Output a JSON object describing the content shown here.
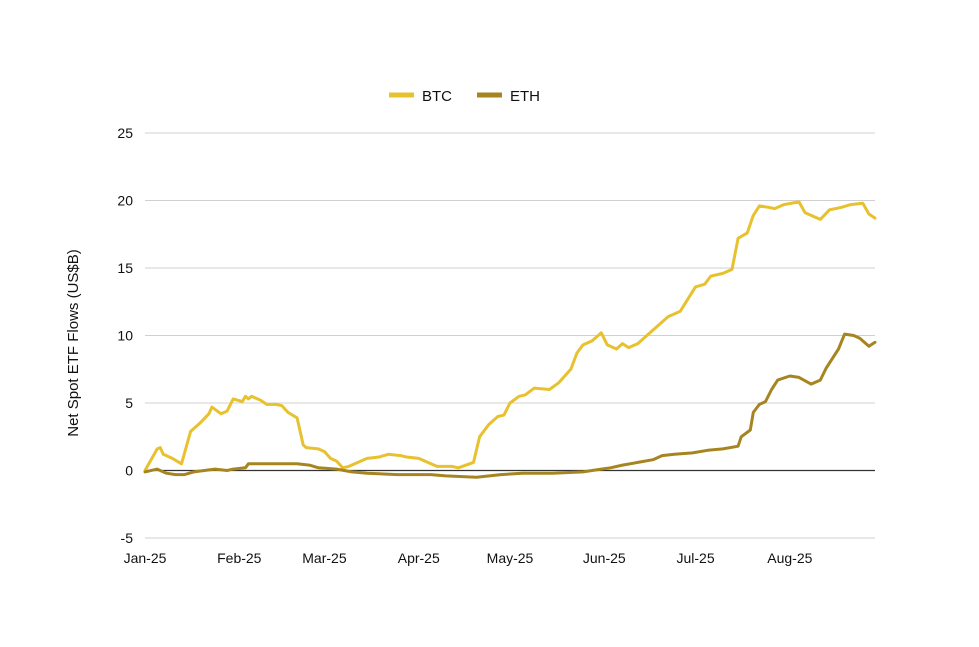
{
  "chart_data": {
    "type": "line",
    "title": "",
    "xlabel": "",
    "ylabel": "Net Spot ETF Flows (US$B)",
    "ylim": [
      -5,
      25
    ],
    "yticks": [
      -5,
      0,
      5,
      10,
      15,
      20,
      25
    ],
    "xlim": [
      "2025-01-01",
      "2025-08-29"
    ],
    "xticks": [
      {
        "date": "2025-01-01",
        "label": "Jan-25"
      },
      {
        "date": "2025-02-01",
        "label": "Feb-25"
      },
      {
        "date": "2025-03-01",
        "label": "Mar-25"
      },
      {
        "date": "2025-04-01",
        "label": "Apr-25"
      },
      {
        "date": "2025-05-01",
        "label": "May-25"
      },
      {
        "date": "2025-06-01",
        "label": "Jun-25"
      },
      {
        "date": "2025-07-01",
        "label": "Jul-25"
      },
      {
        "date": "2025-08-01",
        "label": "Aug-25"
      }
    ],
    "grid": "horizontal",
    "legend_position": "top-center",
    "series": [
      {
        "name": "BTC",
        "color": "#E8C12F",
        "points": [
          [
            "2025-01-01",
            0.0
          ],
          [
            "2025-01-03",
            0.8
          ],
          [
            "2025-01-05",
            1.6
          ],
          [
            "2025-01-06",
            1.7
          ],
          [
            "2025-01-07",
            1.2
          ],
          [
            "2025-01-10",
            0.9
          ],
          [
            "2025-01-13",
            0.5
          ],
          [
            "2025-01-16",
            2.9
          ],
          [
            "2025-01-19",
            3.5
          ],
          [
            "2025-01-22",
            4.2
          ],
          [
            "2025-01-23",
            4.7
          ],
          [
            "2025-01-26",
            4.2
          ],
          [
            "2025-01-28",
            4.4
          ],
          [
            "2025-01-30",
            5.3
          ],
          [
            "2025-02-02",
            5.1
          ],
          [
            "2025-02-03",
            5.5
          ],
          [
            "2025-02-04",
            5.3
          ],
          [
            "2025-02-05",
            5.5
          ],
          [
            "2025-02-08",
            5.2
          ],
          [
            "2025-02-10",
            4.9
          ],
          [
            "2025-02-13",
            4.9
          ],
          [
            "2025-02-15",
            4.8
          ],
          [
            "2025-02-17",
            4.3
          ],
          [
            "2025-02-20",
            3.9
          ],
          [
            "2025-02-22",
            1.9
          ],
          [
            "2025-02-23",
            1.7
          ],
          [
            "2025-02-27",
            1.6
          ],
          [
            "2025-03-01",
            1.4
          ],
          [
            "2025-03-03",
            0.9
          ],
          [
            "2025-03-05",
            0.7
          ],
          [
            "2025-03-07",
            0.2
          ],
          [
            "2025-03-09",
            0.3
          ],
          [
            "2025-03-12",
            0.6
          ],
          [
            "2025-03-15",
            0.9
          ],
          [
            "2025-03-19",
            1.0
          ],
          [
            "2025-03-22",
            1.2
          ],
          [
            "2025-03-26",
            1.1
          ],
          [
            "2025-03-28",
            1.0
          ],
          [
            "2025-04-01",
            0.9
          ],
          [
            "2025-04-05",
            0.5
          ],
          [
            "2025-04-07",
            0.3
          ],
          [
            "2025-04-12",
            0.3
          ],
          [
            "2025-04-14",
            0.2
          ],
          [
            "2025-04-19",
            0.6
          ],
          [
            "2025-04-21",
            2.5
          ],
          [
            "2025-04-24",
            3.4
          ],
          [
            "2025-04-27",
            4.0
          ],
          [
            "2025-04-29",
            4.1
          ],
          [
            "2025-05-01",
            5.0
          ],
          [
            "2025-05-04",
            5.5
          ],
          [
            "2025-05-06",
            5.6
          ],
          [
            "2025-05-09",
            6.1
          ],
          [
            "2025-05-14",
            6.0
          ],
          [
            "2025-05-17",
            6.5
          ],
          [
            "2025-05-21",
            7.5
          ],
          [
            "2025-05-23",
            8.7
          ],
          [
            "2025-05-25",
            9.3
          ],
          [
            "2025-05-28",
            9.6
          ],
          [
            "2025-05-31",
            10.2
          ],
          [
            "2025-06-02",
            9.3
          ],
          [
            "2025-06-05",
            9.0
          ],
          [
            "2025-06-07",
            9.4
          ],
          [
            "2025-06-09",
            9.1
          ],
          [
            "2025-06-12",
            9.4
          ],
          [
            "2025-06-15",
            10.0
          ],
          [
            "2025-06-18",
            10.6
          ],
          [
            "2025-06-22",
            11.4
          ],
          [
            "2025-06-26",
            11.8
          ],
          [
            "2025-06-29",
            12.9
          ],
          [
            "2025-07-01",
            13.6
          ],
          [
            "2025-07-04",
            13.8
          ],
          [
            "2025-07-06",
            14.4
          ],
          [
            "2025-07-10",
            14.6
          ],
          [
            "2025-07-13",
            14.9
          ],
          [
            "2025-07-15",
            17.2
          ],
          [
            "2025-07-18",
            17.6
          ],
          [
            "2025-07-20",
            18.9
          ],
          [
            "2025-07-22",
            19.6
          ],
          [
            "2025-07-25",
            19.5
          ],
          [
            "2025-07-27",
            19.4
          ],
          [
            "2025-07-30",
            19.7
          ],
          [
            "2025-08-04",
            19.9
          ],
          [
            "2025-08-06",
            19.1
          ],
          [
            "2025-08-09",
            18.8
          ],
          [
            "2025-08-11",
            18.6
          ],
          [
            "2025-08-14",
            19.3
          ],
          [
            "2025-08-18",
            19.5
          ],
          [
            "2025-08-21",
            19.7
          ],
          [
            "2025-08-25",
            19.8
          ],
          [
            "2025-08-27",
            19.0
          ],
          [
            "2025-08-29",
            18.7
          ]
        ]
      },
      {
        "name": "ETH",
        "color": "#A68521",
        "points": [
          [
            "2025-01-01",
            -0.1
          ],
          [
            "2025-01-05",
            0.1
          ],
          [
            "2025-01-08",
            -0.2
          ],
          [
            "2025-01-11",
            -0.3
          ],
          [
            "2025-01-14",
            -0.3
          ],
          [
            "2025-01-17",
            -0.1
          ],
          [
            "2025-01-24",
            0.1
          ],
          [
            "2025-01-28",
            0.0
          ],
          [
            "2025-01-30",
            0.1
          ],
          [
            "2025-02-03",
            0.2
          ],
          [
            "2025-02-04",
            0.5
          ],
          [
            "2025-02-10",
            0.5
          ],
          [
            "2025-02-20",
            0.5
          ],
          [
            "2025-02-24",
            0.4
          ],
          [
            "2025-02-27",
            0.2
          ],
          [
            "2025-03-05",
            0.1
          ],
          [
            "2025-03-10",
            -0.1
          ],
          [
            "2025-03-15",
            -0.2
          ],
          [
            "2025-03-25",
            -0.3
          ],
          [
            "2025-04-05",
            -0.3
          ],
          [
            "2025-04-10",
            -0.4
          ],
          [
            "2025-04-20",
            -0.5
          ],
          [
            "2025-04-28",
            -0.3
          ],
          [
            "2025-05-05",
            -0.2
          ],
          [
            "2025-05-15",
            -0.2
          ],
          [
            "2025-05-25",
            -0.1
          ],
          [
            "2025-05-31",
            0.1
          ],
          [
            "2025-06-03",
            0.2
          ],
          [
            "2025-06-07",
            0.4
          ],
          [
            "2025-06-12",
            0.6
          ],
          [
            "2025-06-17",
            0.8
          ],
          [
            "2025-06-20",
            1.1
          ],
          [
            "2025-06-24",
            1.2
          ],
          [
            "2025-06-30",
            1.3
          ],
          [
            "2025-07-05",
            1.5
          ],
          [
            "2025-07-10",
            1.6
          ],
          [
            "2025-07-15",
            1.8
          ],
          [
            "2025-07-16",
            2.5
          ],
          [
            "2025-07-19",
            3.0
          ],
          [
            "2025-07-20",
            4.3
          ],
          [
            "2025-07-22",
            4.9
          ],
          [
            "2025-07-24",
            5.1
          ],
          [
            "2025-07-26",
            6.0
          ],
          [
            "2025-07-28",
            6.7
          ],
          [
            "2025-08-01",
            7.0
          ],
          [
            "2025-08-04",
            6.9
          ],
          [
            "2025-08-08",
            6.4
          ],
          [
            "2025-08-11",
            6.7
          ],
          [
            "2025-08-13",
            7.6
          ],
          [
            "2025-08-17",
            9.0
          ],
          [
            "2025-08-19",
            10.1
          ],
          [
            "2025-08-22",
            10.0
          ],
          [
            "2025-08-24",
            9.8
          ],
          [
            "2025-08-27",
            9.2
          ],
          [
            "2025-08-29",
            9.5
          ]
        ]
      }
    ]
  }
}
